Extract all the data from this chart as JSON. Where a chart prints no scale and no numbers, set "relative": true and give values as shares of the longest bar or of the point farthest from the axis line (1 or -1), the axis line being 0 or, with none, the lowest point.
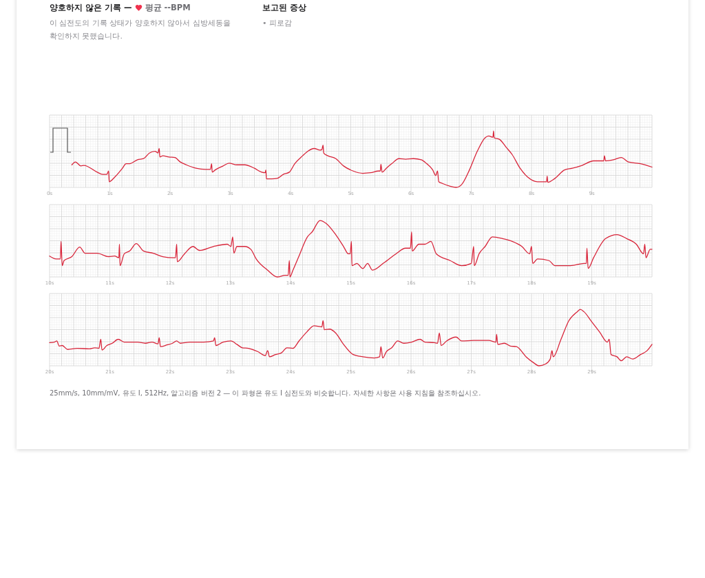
{
  "chart_data": [
    {
      "type": "line",
      "relative": true,
      "title": "양호하지 않은 기록 —",
      "subtitle": "이 심전도의 기록 상태가 양호하지 않아서 심방세동을 확인하지 못했습니다.",
      "annotations": [
        "평균 --BPM",
        "보고된 증상",
        "• 피로감"
      ],
      "xlim": [
        0,
        10
      ],
      "xticks": [
        {
          "value": 0,
          "label": "0s"
        },
        {
          "value": 1,
          "label": "1s"
        },
        {
          "value": 2,
          "label": "2s"
        },
        {
          "value": 3,
          "label": "3s"
        },
        {
          "value": 4,
          "label": "4s"
        },
        {
          "value": 5,
          "label": "5s"
        },
        {
          "value": 6,
          "label": "6s"
        },
        {
          "value": 7,
          "label": "7s"
        },
        {
          "value": 8,
          "label": "8s"
        },
        {
          "value": 9,
          "label": "9s"
        }
      ],
      "grid": true,
      "color": "#d8253a",
      "x": [
        0.37,
        0.43,
        0.52,
        0.57,
        0.79,
        0.88,
        0.95,
        0.98,
        0.99,
        1.08,
        1.21,
        1.27,
        1.33,
        1.46,
        1.56,
        1.66,
        1.75,
        1.8,
        1.82,
        1.83,
        1.88,
        1.98,
        2.08,
        2.17,
        2.27,
        2.43,
        2.59,
        2.67,
        2.69,
        2.7,
        2.75,
        2.88,
        2.98,
        3.11,
        3.24,
        3.4,
        3.52,
        3.58,
        3.59,
        3.6,
        3.69,
        3.78,
        3.88,
        3.98,
        4.07,
        4.2,
        4.3,
        4.39,
        4.49,
        4.52,
        4.54,
        4.55,
        4.62,
        4.75,
        4.88,
        5.04,
        5.2,
        5.33,
        5.46,
        5.49,
        5.5,
        5.52,
        5.59,
        5.68,
        5.8,
        5.91,
        6.04,
        6.17,
        6.26,
        6.36,
        6.41,
        6.44,
        6.46,
        6.52,
        6.65,
        6.75,
        6.84,
        6.97,
        7.1,
        7.23,
        7.29,
        7.36,
        7.37,
        7.38,
        7.47,
        7.58,
        7.68,
        7.81,
        7.94,
        8.1,
        8.25,
        8.26,
        8.27,
        8.39,
        8.55,
        8.68,
        8.84,
        9.03,
        9.2,
        9.21,
        9.23,
        9.36,
        9.49,
        9.61,
        9.81,
        10.0
      ],
      "values": [
        0.4,
        0.45,
        0.38,
        0.39,
        0.27,
        0.23,
        0.23,
        0.29,
        0.1,
        0.18,
        0.34,
        0.42,
        0.42,
        0.49,
        0.51,
        0.61,
        0.64,
        0.61,
        0.69,
        0.54,
        0.56,
        0.54,
        0.53,
        0.45,
        0.4,
        0.34,
        0.32,
        0.32,
        0.42,
        0.27,
        0.31,
        0.38,
        0.43,
        0.4,
        0.4,
        0.34,
        0.27,
        0.26,
        0.31,
        0.15,
        0.15,
        0.16,
        0.23,
        0.27,
        0.42,
        0.56,
        0.65,
        0.69,
        0.66,
        0.67,
        0.75,
        0.61,
        0.56,
        0.51,
        0.38,
        0.29,
        0.25,
        0.26,
        0.29,
        0.29,
        0.41,
        0.27,
        0.34,
        0.42,
        0.51,
        0.5,
        0.51,
        0.49,
        0.42,
        0.31,
        0.21,
        0.29,
        0.1,
        0.07,
        0.02,
        0,
        0.05,
        0.31,
        0.64,
        0.88,
        0.91,
        0.89,
        1,
        0.88,
        0.85,
        0.71,
        0.58,
        0.34,
        0.18,
        0.1,
        0.1,
        0.2,
        0.09,
        0.16,
        0.31,
        0.34,
        0.39,
        0.47,
        0.47,
        0.56,
        0.47,
        0.49,
        0.53,
        0.45,
        0.42,
        0.36
      ]
    },
    {
      "type": "line",
      "relative": true,
      "xlim": [
        10,
        20
      ],
      "xticks": [
        {
          "value": 10,
          "label": "10s"
        },
        {
          "value": 11,
          "label": "11s"
        },
        {
          "value": 12,
          "label": "12s"
        },
        {
          "value": 13,
          "label": "13s"
        },
        {
          "value": 14,
          "label": "14s"
        },
        {
          "value": 15,
          "label": "15s"
        },
        {
          "value": 16,
          "label": "16s"
        },
        {
          "value": 17,
          "label": "17s"
        },
        {
          "value": 18,
          "label": "18s"
        },
        {
          "value": 19,
          "label": "19s"
        }
      ],
      "grid": true,
      "color": "#d8253a",
      "x": [
        10.0,
        10.11,
        10.18,
        10.19,
        10.21,
        10.24,
        10.37,
        10.5,
        10.59,
        10.79,
        10.98,
        11.08,
        11.15,
        11.16,
        11.17,
        11.24,
        11.33,
        11.44,
        11.56,
        11.72,
        11.88,
        12.06,
        12.09,
        12.11,
        12.12,
        12.24,
        12.38,
        12.49,
        12.72,
        12.95,
        13.01,
        13.04,
        13.06,
        13.11,
        13.24,
        13.34,
        13.43,
        13.62,
        13.78,
        13.91,
        13.96,
        13.98,
        13.99,
        14.04,
        14.14,
        14.28,
        14.36,
        14.49,
        14.59,
        14.75,
        14.88,
        14.96,
        14.99,
        15.01,
        15.02,
        15.1,
        15.2,
        15.28,
        15.36,
        15.55,
        15.75,
        15.91,
        15.99,
        16.01,
        16.02,
        16.13,
        16.23,
        16.33,
        16.42,
        16.65,
        16.84,
        17.0,
        17.04,
        17.05,
        17.13,
        17.23,
        17.35,
        17.52,
        17.68,
        17.84,
        17.97,
        18.0,
        18.02,
        18.1,
        18.29,
        18.39,
        18.65,
        18.87,
        18.91,
        18.92,
        18.94,
        19.03,
        19.23,
        19.42,
        19.58,
        19.74,
        19.86,
        19.88,
        19.9,
        19.97,
        20.0
      ],
      "values": [
        0.37,
        0.32,
        0.32,
        0.63,
        0.2,
        0.29,
        0.36,
        0.53,
        0.42,
        0.42,
        0.36,
        0.37,
        0.34,
        0.58,
        0.2,
        0.41,
        0.46,
        0.59,
        0.46,
        0.42,
        0.36,
        0.34,
        0.34,
        0.58,
        0.27,
        0.41,
        0.54,
        0.47,
        0.54,
        0.58,
        0.54,
        0.71,
        0.42,
        0.54,
        0.54,
        0.49,
        0.32,
        0.12,
        0,
        0.03,
        0.03,
        0.29,
        0,
        0.12,
        0.37,
        0.71,
        0.8,
        1,
        0.95,
        0.75,
        0.54,
        0.41,
        0.41,
        0.63,
        0.2,
        0.24,
        0.15,
        0.24,
        0.12,
        0.25,
        0.41,
        0.51,
        0.51,
        0.8,
        0.46,
        0.58,
        0.58,
        0.63,
        0.41,
        0.29,
        0.2,
        0.24,
        0.54,
        0.2,
        0.41,
        0.54,
        0.71,
        0.68,
        0.63,
        0.54,
        0.41,
        0.54,
        0.24,
        0.32,
        0.29,
        0.2,
        0.2,
        0.24,
        0.24,
        0.51,
        0.15,
        0.34,
        0.68,
        0.75,
        0.68,
        0.58,
        0.41,
        0.58,
        0.34,
        0.49,
        0.49
      ]
    },
    {
      "type": "line",
      "relative": true,
      "annotations": [
        "25mm/s, 10mm/mV, 유도 I, 512Hz, 알고리즘 버전 2 — 이 파형은 유도 I 심전도와 비슷합니다. 자세한 사항은 사용 지침을 참조하십시오."
      ],
      "xlim": [
        20,
        30
      ],
      "xticks": [
        {
          "value": 20,
          "label": "20s"
        },
        {
          "value": 21,
          "label": "21s"
        },
        {
          "value": 22,
          "label": "22s"
        },
        {
          "value": 23,
          "label": "23s"
        },
        {
          "value": 24,
          "label": "24s"
        },
        {
          "value": 25,
          "label": "25s"
        },
        {
          "value": 26,
          "label": "26s"
        },
        {
          "value": 27,
          "label": "27s"
        },
        {
          "value": 28,
          "label": "28s"
        },
        {
          "value": 29,
          "label": "29s"
        }
      ],
      "grid": true,
      "color": "#d8253a",
      "x": [
        20.0,
        20.08,
        20.12,
        20.16,
        20.21,
        20.3,
        20.46,
        20.66,
        20.75,
        20.82,
        20.85,
        20.87,
        20.95,
        21.04,
        21.14,
        21.24,
        21.46,
        21.59,
        21.7,
        21.8,
        21.82,
        21.84,
        21.95,
        22.04,
        22.11,
        22.17,
        22.33,
        22.56,
        22.72,
        22.74,
        22.76,
        22.88,
        23.01,
        23.11,
        23.2,
        23.3,
        23.46,
        23.58,
        23.62,
        23.65,
        23.75,
        23.85,
        23.94,
        24.04,
        24.14,
        24.27,
        24.39,
        24.52,
        24.54,
        24.56,
        24.65,
        24.75,
        24.88,
        25.04,
        25.2,
        25.39,
        25.48,
        25.5,
        25.53,
        25.59,
        25.68,
        25.78,
        25.88,
        26.01,
        26.15,
        26.23,
        26.39,
        26.44,
        26.47,
        26.5,
        26.59,
        26.75,
        26.84,
        27.04,
        27.29,
        27.41,
        27.42,
        27.44,
        27.55,
        27.65,
        27.75,
        27.91,
        28.04,
        28.12,
        28.23,
        28.31,
        28.34,
        28.36,
        28.49,
        28.62,
        28.76,
        28.81,
        28.87,
        29.0,
        29.13,
        29.26,
        29.29,
        29.32,
        29.42,
        29.49,
        29.58,
        29.68,
        29.81,
        29.92,
        30.0
      ],
      "values": [
        0.41,
        0.42,
        0.44,
        0.35,
        0.36,
        0.29,
        0.31,
        0.3,
        0.32,
        0.31,
        0.47,
        0.28,
        0.36,
        0.4,
        0.47,
        0.42,
        0.42,
        0.4,
        0.42,
        0.39,
        0.5,
        0.34,
        0.37,
        0.4,
        0.44,
        0.4,
        0.42,
        0.42,
        0.44,
        0.5,
        0.36,
        0.42,
        0.44,
        0.38,
        0.32,
        0.31,
        0.25,
        0.18,
        0.27,
        0.16,
        0.2,
        0.23,
        0.32,
        0.31,
        0.44,
        0.6,
        0.71,
        0.69,
        0.8,
        0.64,
        0.65,
        0.58,
        0.38,
        0.2,
        0.16,
        0.14,
        0.16,
        0.34,
        0.14,
        0.25,
        0.32,
        0.44,
        0.4,
        0.42,
        0.47,
        0.42,
        0.41,
        0.4,
        0.58,
        0.36,
        0.44,
        0.51,
        0.44,
        0.45,
        0.45,
        0.42,
        0.56,
        0.38,
        0.4,
        0.35,
        0.34,
        0.16,
        0.05,
        0,
        0.03,
        0.12,
        0.27,
        0.16,
        0.47,
        0.8,
        0.96,
        1,
        0.96,
        0.78,
        0.6,
        0.42,
        0.47,
        0.2,
        0.16,
        0.09,
        0.16,
        0.12,
        0.2,
        0.27,
        0.38
      ]
    }
  ]
}
